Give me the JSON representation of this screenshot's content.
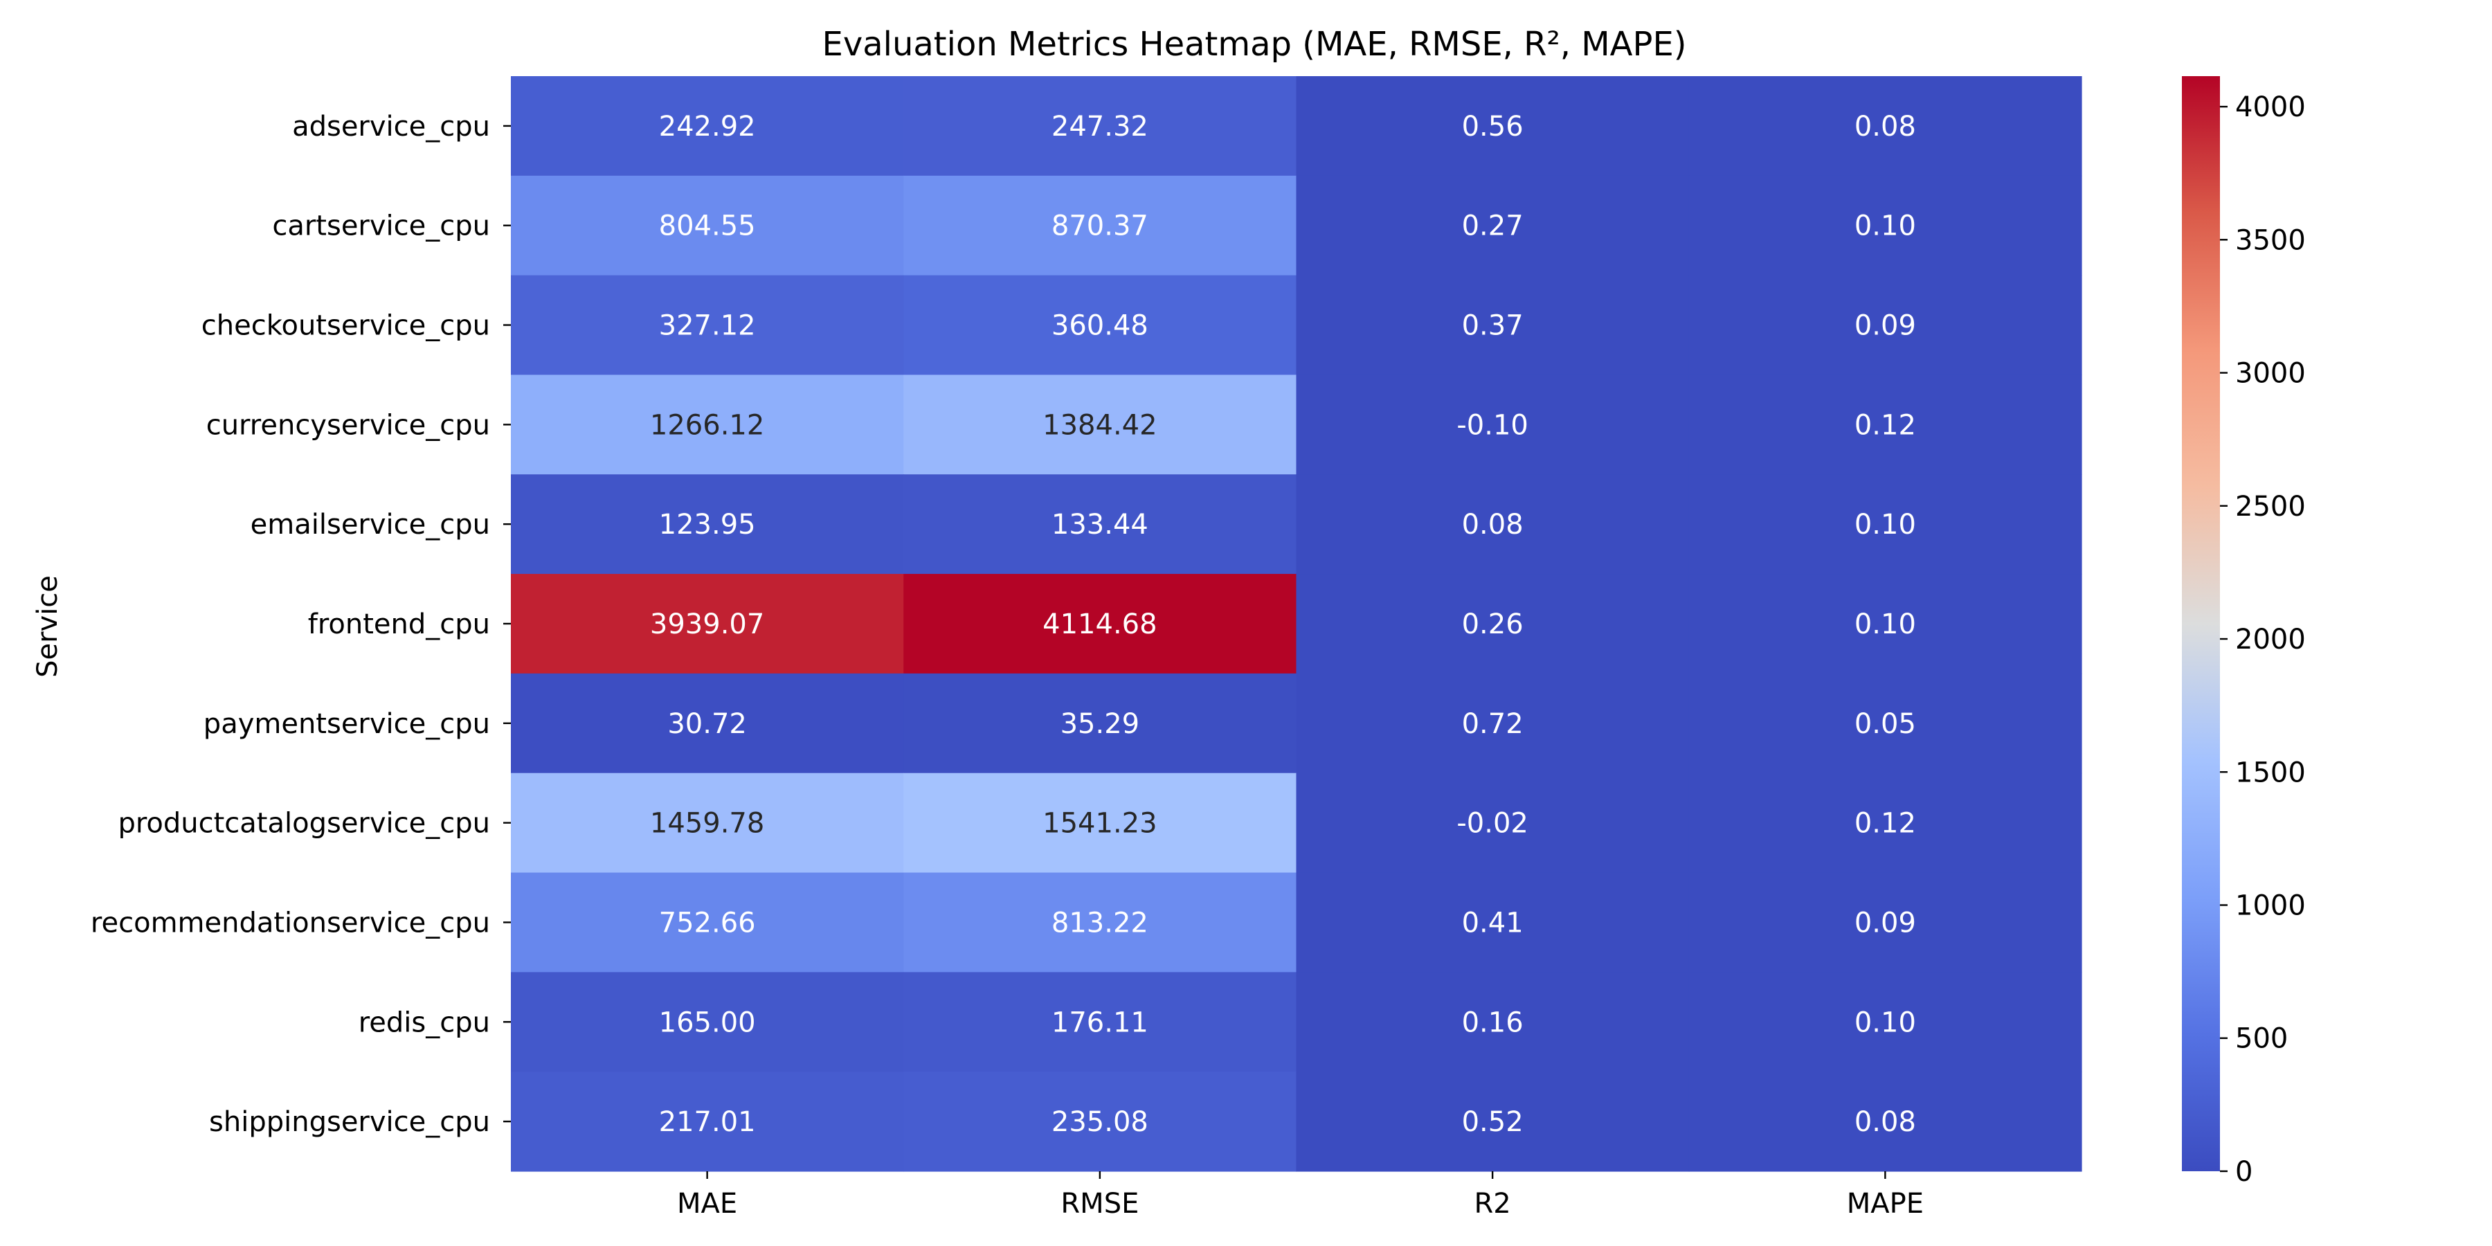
{
  "chart_data": {
    "type": "heatmap",
    "title": "Evaluation Metrics Heatmap (MAE, RMSE, R², MAPE)",
    "xlabel": "",
    "ylabel": "Service",
    "columns": [
      "MAE",
      "RMSE",
      "R2",
      "MAPE"
    ],
    "rows": [
      "adservice_cpu",
      "cartservice_cpu",
      "checkoutservice_cpu",
      "currencyservice_cpu",
      "emailservice_cpu",
      "frontend_cpu",
      "paymentservice_cpu",
      "productcatalogservice_cpu",
      "recommendationservice_cpu",
      "redis_cpu",
      "shippingservice_cpu"
    ],
    "values": [
      [
        242.92,
        247.32,
        0.56,
        0.08
      ],
      [
        804.55,
        870.37,
        0.27,
        0.1
      ],
      [
        327.12,
        360.48,
        0.37,
        0.09
      ],
      [
        1266.12,
        1384.42,
        -0.1,
        0.12
      ],
      [
        123.95,
        133.44,
        0.08,
        0.1
      ],
      [
        3939.07,
        4114.68,
        0.26,
        0.1
      ],
      [
        30.72,
        35.29,
        0.72,
        0.05
      ],
      [
        1459.78,
        1541.23,
        -0.02,
        0.12
      ],
      [
        752.66,
        813.22,
        0.41,
        0.09
      ],
      [
        165.0,
        176.11,
        0.16,
        0.1
      ],
      [
        217.01,
        235.08,
        0.52,
        0.08
      ]
    ],
    "annotations": [
      [
        "242.92",
        "247.32",
        "0.56",
        "0.08"
      ],
      [
        "804.55",
        "870.37",
        "0.27",
        "0.10"
      ],
      [
        "327.12",
        "360.48",
        "0.37",
        "0.09"
      ],
      [
        "1266.12",
        "1384.42",
        "-0.10",
        "0.12"
      ],
      [
        "123.95",
        "133.44",
        "0.08",
        "0.10"
      ],
      [
        "3939.07",
        "4114.68",
        "0.26",
        "0.10"
      ],
      [
        "30.72",
        "35.29",
        "0.72",
        "0.05"
      ],
      [
        "1459.78",
        "1541.23",
        "-0.02",
        "0.12"
      ],
      [
        "752.66",
        "813.22",
        "0.41",
        "0.09"
      ],
      [
        "165.00",
        "176.11",
        "0.16",
        "0.10"
      ],
      [
        "217.01",
        "235.08",
        "0.52",
        "0.08"
      ]
    ],
    "colormap": "coolwarm",
    "colorbar": {
      "range": [
        -0.1,
        4114.68
      ],
      "ticks": [
        0,
        500,
        1000,
        1500,
        2000,
        2500,
        3000,
        3500,
        4000
      ],
      "tick_labels": [
        "0",
        "500",
        "1000",
        "1500",
        "2000",
        "2500",
        "3000",
        "3500",
        "4000"
      ]
    },
    "colors": {
      "low": "#3b4cc0",
      "mid": "#dddddd",
      "high": "#b40426",
      "annotation_on_dark": "#ffffff",
      "annotation_on_light": "#262626"
    }
  }
}
